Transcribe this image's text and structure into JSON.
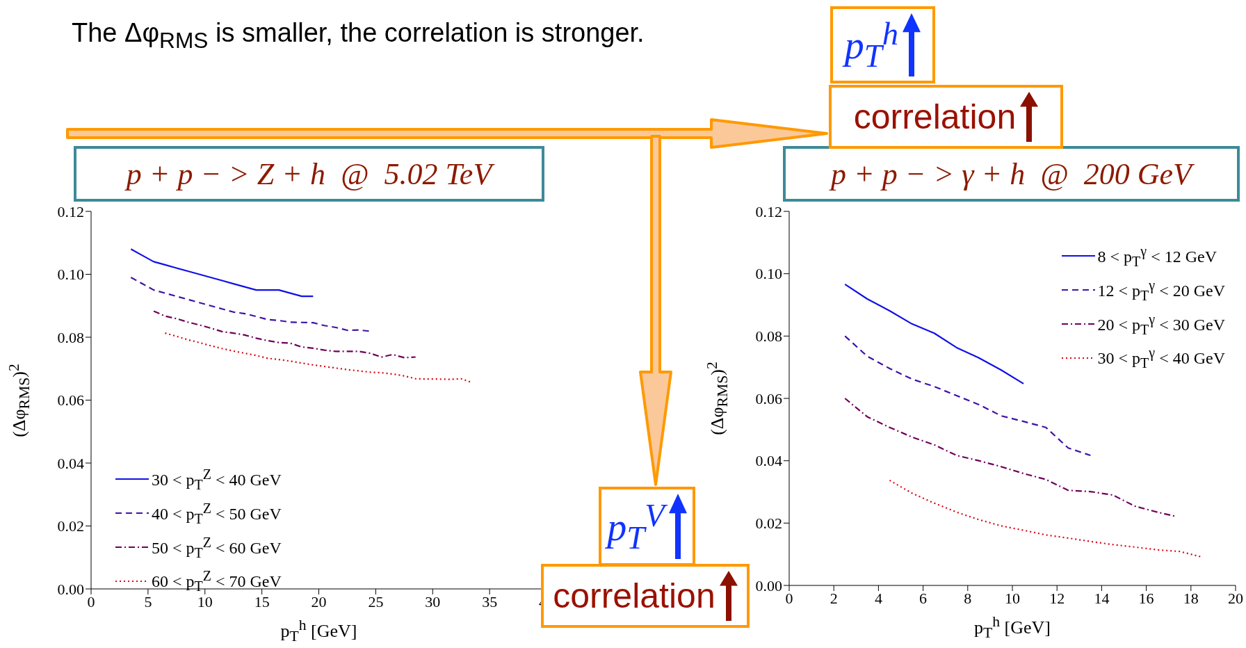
{
  "chart_data": [
    {
      "type": "line",
      "title": "p + p − > Z + h  @  5.02 TeV",
      "xlabel": "p$_{T}$$^{h}$ [GeV]",
      "ylabel": "(Δφ$_{RMS}$)$^{2}$",
      "legend": "bottom left",
      "xlim": [
        0,
        40
      ],
      "xticks": [
        0,
        5,
        10,
        15,
        20,
        25,
        30,
        35,
        40
      ],
      "ylim": [
        0,
        0.12
      ],
      "yticks": [
        {
          "value": 0,
          "label": "0.00"
        },
        {
          "value": 0.02,
          "label": "0.02"
        },
        {
          "value": 0.04,
          "label": "0.04"
        },
        {
          "value": 0.06,
          "label": "0.06"
        },
        {
          "value": 0.08,
          "label": "0.08"
        },
        {
          "value": 0.1,
          "label": "0.10"
        },
        {
          "value": 0.12,
          "label": "0.12"
        }
      ],
      "series": [
        {
          "name": "30 < p$_{T}$$^{Z}$ < 40 GeV",
          "color": "#1010e8",
          "line_style": "solid",
          "x": [
            3.5,
            4.5,
            5.5,
            6.5,
            7.5,
            8.5,
            9.5,
            10.5,
            11.5,
            12.5,
            13.5,
            14.5,
            15.5,
            16.5,
            17.5,
            18.5,
            19.5
          ],
          "values": [
            0.108,
            0.106,
            0.104,
            0.103,
            0.102,
            0.101,
            0.1,
            0.099,
            0.098,
            0.097,
            0.096,
            0.095,
            0.095,
            0.095,
            0.094,
            0.093,
            0.093
          ]
        },
        {
          "name": "40 < p$_{T}$$^{Z}$ < 50 GeV",
          "color": "#4012a8",
          "line_style": "dashed",
          "x": [
            3.5,
            4.5,
            5.5,
            6.5,
            7.5,
            8.5,
            9.5,
            10.5,
            11.5,
            12.5,
            13.5,
            14.5,
            15.5,
            16.5,
            17.5,
            18.5,
            19.5,
            20.5,
            21.5,
            22.5,
            23.5,
            24.5
          ],
          "values": [
            0.099,
            0.097,
            0.095,
            0.094,
            0.093,
            0.092,
            0.091,
            0.09,
            0.089,
            0.088,
            0.0875,
            0.0866,
            0.0856,
            0.0853,
            0.0848,
            0.0847,
            0.0846,
            0.0837,
            0.0831,
            0.0822,
            0.0823,
            0.0819
          ]
        },
        {
          "name": "50 < p$_{T}$$^{Z}$ < 60 GeV",
          "color": "#70005a",
          "line_style": "dashdot",
          "x": [
            5.5,
            6.5,
            7.5,
            8.5,
            9.5,
            10.5,
            11.5,
            12.5,
            13.5,
            14.5,
            15.5,
            16.5,
            17.5,
            18.5,
            19.5,
            20.5,
            21.5,
            22.5,
            23.5,
            24.5,
            25.5,
            26.5,
            27.5,
            28.5
          ],
          "values": [
            0.0883,
            0.0867,
            0.0859,
            0.0848,
            0.0839,
            0.0829,
            0.0818,
            0.0813,
            0.0807,
            0.0797,
            0.0789,
            0.0783,
            0.0781,
            0.0769,
            0.0765,
            0.0759,
            0.0755,
            0.0755,
            0.0755,
            0.0749,
            0.0737,
            0.0745,
            0.0735,
            0.0737
          ]
        },
        {
          "name": "60 < p$_{T}$$^{Z}$ < 70 GeV",
          "color": "#dd0010",
          "line_style": "dotted",
          "x": [
            6.5,
            7.5,
            8.5,
            9.5,
            10.5,
            11.5,
            12.5,
            13.5,
            14.5,
            15.5,
            16.5,
            17.5,
            18.5,
            19.5,
            20.5,
            21.5,
            22.5,
            23.5,
            24.5,
            25.5,
            26.5,
            27.5,
            28.5,
            29.5,
            30.5,
            31.5,
            32.5,
            33.3
          ],
          "values": [
            0.0813,
            0.0803,
            0.0792,
            0.0783,
            0.0773,
            0.0764,
            0.0756,
            0.0749,
            0.0742,
            0.0733,
            0.0729,
            0.0724,
            0.0718,
            0.0712,
            0.0707,
            0.0702,
            0.0697,
            0.0693,
            0.0689,
            0.0687,
            0.0683,
            0.0677,
            0.0668,
            0.0667,
            0.0667,
            0.0666,
            0.0668,
            0.0658
          ]
        }
      ],
      "annotations": [
        "The Δφ$_{RMS}$ is smaller, the correlation is stronger.",
        "p$_{T}$$^{V}$",
        "correlation"
      ]
    },
    {
      "type": "line",
      "title": "p + p − > γ + h  @  200 GeV",
      "xlabel": "p$_{T}$$^{h}$ [GeV]",
      "ylabel": "(Δφ$_{RMS}$)$^{2}$",
      "legend": "top right",
      "xlim": [
        0,
        20
      ],
      "xticks": [
        0,
        2,
        4,
        6,
        8,
        10,
        12,
        14,
        16,
        18,
        20
      ],
      "ylim": [
        0,
        0.12
      ],
      "yticks": [
        {
          "value": 0,
          "label": "0.00"
        },
        {
          "value": 0.02,
          "label": "0.02"
        },
        {
          "value": 0.04,
          "label": "0.04"
        },
        {
          "value": 0.06,
          "label": "0.06"
        },
        {
          "value": 0.08,
          "label": "0.08"
        },
        {
          "value": 0.1,
          "label": "0.10"
        },
        {
          "value": 0.12,
          "label": "0.12"
        }
      ],
      "series": [
        {
          "name": "8 < p$_{T}$$^{γ}$ < 12 GeV",
          "color": "#1010e8",
          "line_style": "solid",
          "x": [
            2.5,
            3.5,
            4.5,
            5.5,
            6.5,
            7.5,
            8.5,
            9.5,
            10.5
          ],
          "values": [
            0.0966,
            0.0919,
            0.0881,
            0.0839,
            0.0809,
            0.0763,
            0.073,
            0.0691,
            0.0647
          ]
        },
        {
          "name": "12 < p$_{T}$$^{γ}$ < 20 GeV",
          "color": "#4012a8",
          "line_style": "dashed",
          "x": [
            2.5,
            3.5,
            4.5,
            5.5,
            6.5,
            7.5,
            8.5,
            9.5,
            10.5,
            11.5,
            12.5,
            13.5
          ],
          "values": [
            0.08,
            0.0735,
            0.0696,
            0.0662,
            0.0638,
            0.0609,
            0.058,
            0.0544,
            0.0526,
            0.0507,
            0.0441,
            0.0417
          ]
        },
        {
          "name": "20 < p$_{T}$$^{γ}$ < 30 GeV",
          "color": "#70005a",
          "line_style": "dashdot",
          "x": [
            2.5,
            3.5,
            4.5,
            5.5,
            6.5,
            7.5,
            8.5,
            9.5,
            10.5,
            11.5,
            12.5,
            13.5,
            14.5,
            15.5,
            16.5,
            17.3
          ],
          "values": [
            0.06,
            0.0541,
            0.0507,
            0.0476,
            0.0451,
            0.0417,
            0.04,
            0.0381,
            0.0359,
            0.034,
            0.0305,
            0.0301,
            0.029,
            0.0254,
            0.0235,
            0.0222
          ]
        },
        {
          "name": "30 < p$_{T}$$^{γ}$ < 40 GeV",
          "color": "#dd0010",
          "line_style": "dotted",
          "x": [
            4.5,
            5.5,
            6.5,
            7.5,
            8.5,
            9.5,
            10.5,
            11.5,
            12.5,
            13.5,
            14.5,
            15.5,
            16.5,
            17.5,
            18.5
          ],
          "values": [
            0.0337,
            0.0296,
            0.0264,
            0.0235,
            0.0211,
            0.0191,
            0.0177,
            0.0162,
            0.0152,
            0.0141,
            0.0131,
            0.0123,
            0.0114,
            0.0109,
            0.0091
          ]
        }
      ],
      "annotations": [
        "p$_{T}$$^{h}$",
        "correlation"
      ]
    }
  ]
}
